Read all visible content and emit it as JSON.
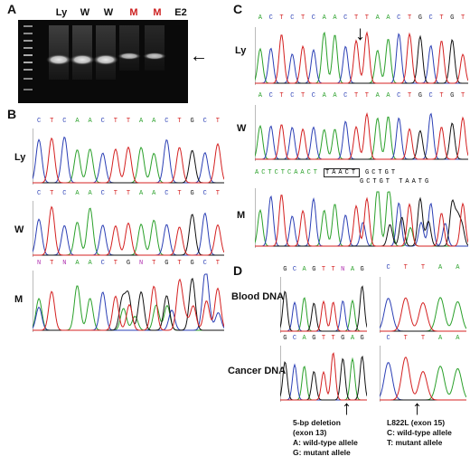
{
  "panels": {
    "a": "A",
    "b": "B",
    "c": "C",
    "d": "D"
  },
  "gel": {
    "lanes": [
      {
        "label": "Ly",
        "color": "#111111"
      },
      {
        "label": "W",
        "color": "#111111"
      },
      {
        "label": "W",
        "color": "#111111"
      },
      {
        "label": "M",
        "color": "#cc1f1f"
      },
      {
        "label": "M",
        "color": "#cc1f1f"
      },
      {
        "label": "E2",
        "color": "#111111"
      }
    ],
    "arrow": "←"
  },
  "panel_b": {
    "rows": [
      {
        "label": "Ly",
        "seq": "CTCAACTTAACTGCT"
      },
      {
        "label": "W",
        "seq": "CTCAACTTAACTGCT"
      },
      {
        "label": "M",
        "seq": "NTNAACTGNTGTGCT"
      }
    ]
  },
  "panel_c": {
    "rows": [
      {
        "label": "Ly",
        "seq": "ACTCTCAACTTAACTGCTGT"
      },
      {
        "label": "W",
        "seq": "ACTCTCAACTTAACTGCTGT"
      },
      {
        "label": "M",
        "seq_prefix": "ACTCTCAACT",
        "boxed": "TAACT",
        "seq_suffix": "GCTGT",
        "seq_lower": "GCTGT TAATG"
      }
    ],
    "arrow": "↓"
  },
  "panel_d": {
    "row_labels": [
      "Blood DNA",
      "Cancer DNA"
    ],
    "left_seq": "GCAGTTNAG",
    "right_seq": "CTTAA",
    "cancer_left_seq": "GCAGTTGAG",
    "cancer_right_seq": "CTTAA",
    "arrows": [
      "↑",
      "↑"
    ],
    "notes_left": [
      "5-bp deletion",
      "(exon 13)",
      "A: wild-type allele",
      "G: mutant allele"
    ],
    "notes_right": [
      "L822L (exon 15)",
      "C: wild-type allele",
      "T: mutant allele"
    ]
  },
  "colors": {
    "A": "#2aa02a",
    "C": "#2b3fb5",
    "G": "#111111",
    "T": "#d42020",
    "N": "#b030b0"
  }
}
